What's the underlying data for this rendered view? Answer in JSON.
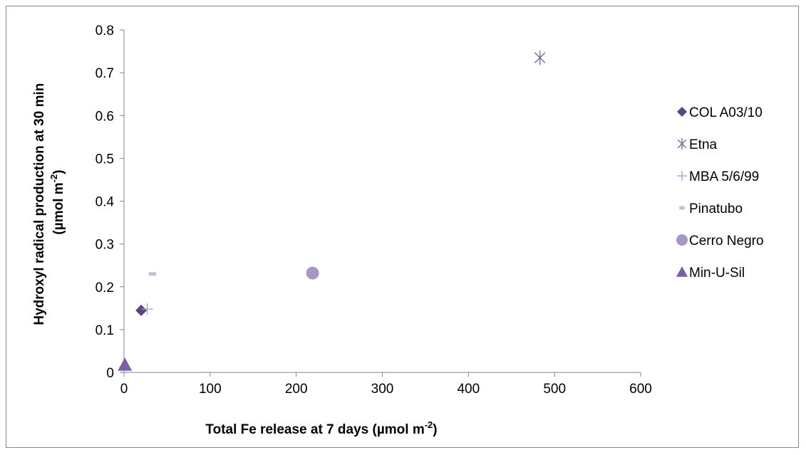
{
  "chart_data": {
    "type": "scatter",
    "xlabel": "Total Fe release at 7 days (µmol m",
    "xlabel_sup": "-2",
    "xlabel_end": ")",
    "ylabel": "Hydroxyl radical production at 30 min",
    "ylabel_line2": "(µmol m",
    "ylabel_sup": "-2",
    "ylabel_end": ")",
    "xlim": [
      0,
      600
    ],
    "ylim": [
      0,
      0.8
    ],
    "x_ticks": [
      "0",
      "100",
      "200",
      "300",
      "400",
      "500",
      "600"
    ],
    "y_ticks": [
      "0",
      "0.1",
      "0.2",
      "0.3",
      "0.4",
      "0.5",
      "0.6",
      "0.7",
      "0.8"
    ],
    "grid": false,
    "legend_position": "right",
    "series": [
      {
        "name": "COL A03/10",
        "marker": "diamond",
        "color": "#5b4681",
        "x": [
          20
        ],
        "y": [
          0.145
        ]
      },
      {
        "name": "Etna",
        "marker": "asterisk",
        "color": "#8064a2",
        "x": [
          483
        ],
        "y": [
          0.735
        ]
      },
      {
        "name": "MBA 5/6/99",
        "marker": "plus",
        "color": "#a89cc8",
        "x": [
          27
        ],
        "y": [
          0.148
        ]
      },
      {
        "name": "Pinatubo",
        "marker": "dash",
        "color": "#c3bfdc",
        "x": [
          33
        ],
        "y": [
          0.23
        ]
      },
      {
        "name": "Cerro Negro",
        "marker": "circle",
        "color": "#a897c4",
        "x": [
          219
        ],
        "y": [
          0.232
        ]
      },
      {
        "name": "Min-U-Sil",
        "marker": "triangle",
        "color": "#7a5ea6",
        "x": [
          1
        ],
        "y": [
          0.018
        ]
      }
    ]
  }
}
